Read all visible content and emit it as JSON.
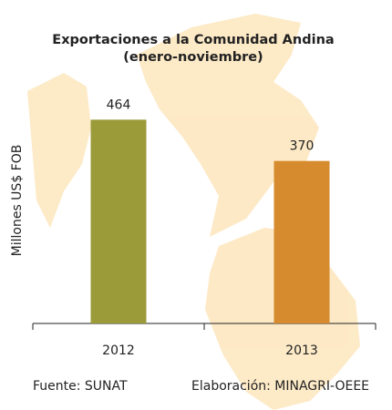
{
  "chart_data": {
    "type": "bar",
    "title": [
      "Exportaciones a la Comunidad Andina",
      "(enero-noviembre)"
    ],
    "y_label": "Millones US$ FOB",
    "categories": [
      "2012",
      "2013"
    ],
    "values": [
      464,
      370
    ],
    "colors": [
      "#9b9b3a",
      "#d78b2f"
    ],
    "ylim": [
      0,
      500
    ]
  },
  "footer": {
    "source": "Fuente: SUNAT",
    "credit": "Elaboración: MINAGRI-OEEE"
  }
}
